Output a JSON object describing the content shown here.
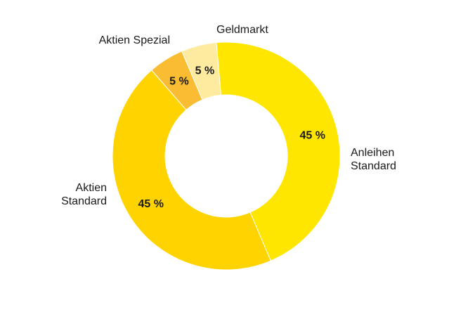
{
  "chart_data": {
    "type": "pie",
    "donut": true,
    "title": "",
    "slices": [
      {
        "label": "Anleihen Standard",
        "label_lines": [
          "Anleihen",
          "Standard"
        ],
        "value": 45,
        "value_label": "45 %",
        "color": "#FFE600"
      },
      {
        "label": "Aktien Standard",
        "label_lines": [
          "Aktien",
          "Standard"
        ],
        "value": 45,
        "value_label": "45 %",
        "color": "#FFD300"
      },
      {
        "label": "Aktien Spezial",
        "label_lines": [
          "Aktien Spezial"
        ],
        "value": 5,
        "value_label": "5 %",
        "color": "#F9BC32"
      },
      {
        "label": "Geldmarkt",
        "label_lines": [
          "Geldmarkt"
        ],
        "value": 5,
        "value_label": "5 %",
        "color": "#FFEBA0"
      }
    ]
  }
}
